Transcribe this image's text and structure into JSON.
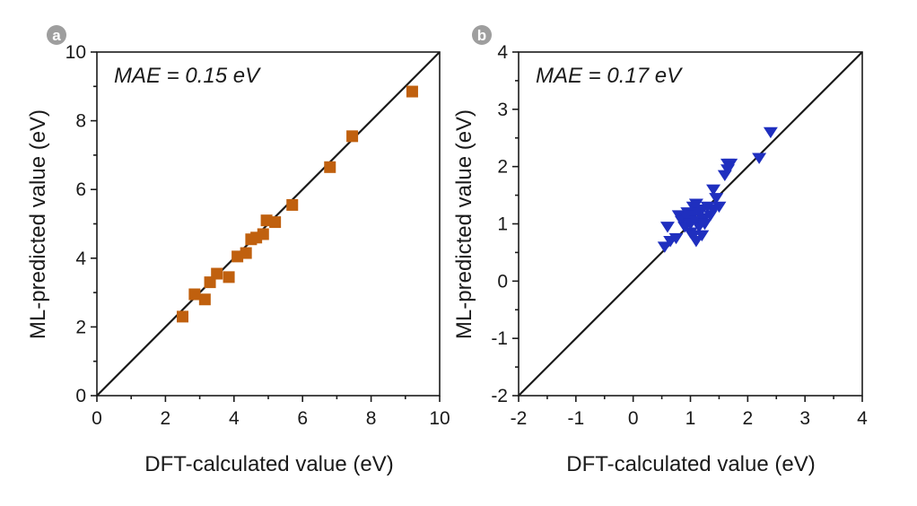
{
  "chart_data": [
    {
      "panel": "a",
      "type": "scatter",
      "annotation": "MAE = 0.15 eV",
      "xlabel": "DFT-calculated value (eV)",
      "ylabel": "ML-predicted value (eV)",
      "xlim": [
        0,
        10
      ],
      "ylim": [
        0,
        10
      ],
      "xticks": [
        0,
        2,
        4,
        6,
        8,
        10
      ],
      "yticks": [
        0,
        2,
        4,
        6,
        8,
        10
      ],
      "xtick_labels": [
        "0",
        "2",
        "4",
        "6",
        "8",
        "10"
      ],
      "ytick_labels": [
        "0",
        "2",
        "4",
        "6",
        "8",
        "10"
      ],
      "marker": "square",
      "color": "#c0600e",
      "reference_line": "y = x",
      "x": [
        2.5,
        2.85,
        3.15,
        3.3,
        3.5,
        3.85,
        4.1,
        4.35,
        4.5,
        4.65,
        4.85,
        4.95,
        5.2,
        5.7,
        6.8,
        7.45,
        9.2
      ],
      "y": [
        2.3,
        2.95,
        2.8,
        3.3,
        3.55,
        3.45,
        4.05,
        4.15,
        4.55,
        4.6,
        4.7,
        5.1,
        5.05,
        5.55,
        6.65,
        7.55,
        8.85
      ]
    },
    {
      "panel": "b",
      "type": "scatter",
      "annotation": "MAE = 0.17 eV",
      "xlabel": "DFT-calculated value (eV)",
      "ylabel": "ML-predicted value (eV)",
      "xlim": [
        -2,
        4
      ],
      "ylim": [
        -2,
        4
      ],
      "xticks": [
        -2,
        -1,
        0,
        1,
        2,
        3,
        4
      ],
      "yticks": [
        -2,
        -1,
        0,
        1,
        2,
        3,
        4
      ],
      "xtick_labels": [
        "-2",
        "-1",
        "0",
        "1",
        "2",
        "3",
        "4"
      ],
      "ytick_labels": [
        "-2",
        "-1",
        "0",
        "1",
        "2",
        "3",
        "4"
      ],
      "marker": "triangle-down",
      "color": "#1f2fbf",
      "reference_line": "y = x",
      "x": [
        0.55,
        0.6,
        0.65,
        0.75,
        0.8,
        0.85,
        0.9,
        0.95,
        0.95,
        1.0,
        1.0,
        1.05,
        1.05,
        1.05,
        1.1,
        1.1,
        1.1,
        1.15,
        1.15,
        1.2,
        1.2,
        1.25,
        1.25,
        1.3,
        1.35,
        1.4,
        1.4,
        1.45,
        1.5,
        1.6,
        1.65,
        1.65,
        1.7,
        2.2,
        2.4
      ],
      "y": [
        0.6,
        0.95,
        0.7,
        0.75,
        1.15,
        1.05,
        0.95,
        1.2,
        1.1,
        1.0,
        0.85,
        1.3,
        1.15,
        0.8,
        1.35,
        1.05,
        0.7,
        1.2,
        0.95,
        1.25,
        0.8,
        1.1,
        1.0,
        1.3,
        1.15,
        1.6,
        1.25,
        1.45,
        1.3,
        1.85,
        1.95,
        2.05,
        2.05,
        2.15,
        2.6
      ]
    }
  ]
}
